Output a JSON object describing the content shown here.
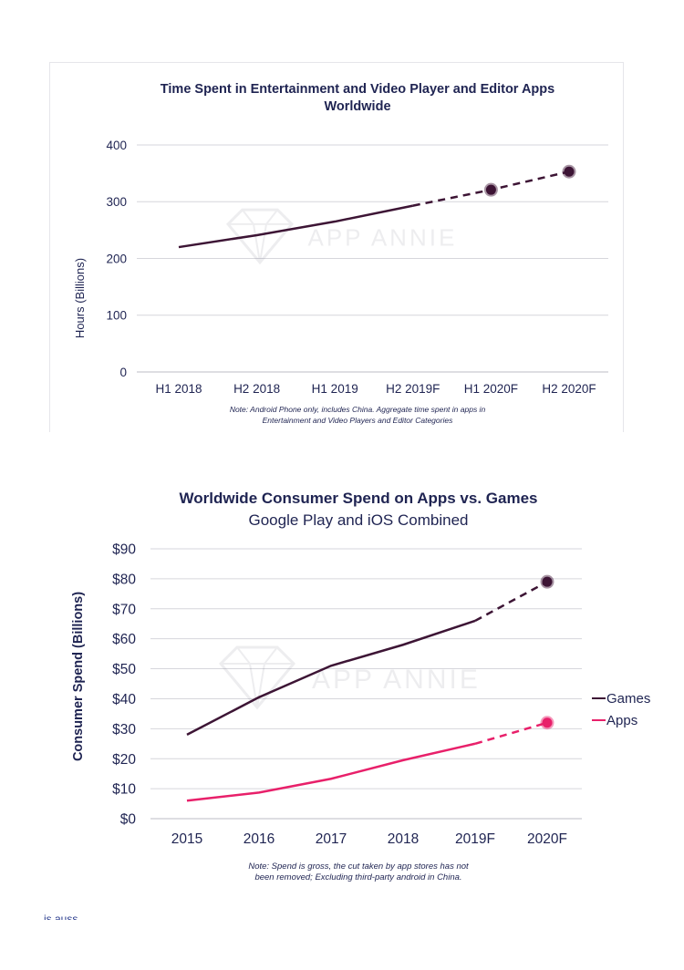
{
  "chart_data": [
    {
      "type": "line",
      "title": "Time Spent in Entertainment and Video Player and Editor Apps",
      "subtitle": "Worldwide",
      "xlabel": "",
      "ylabel": "Hours (Billions)",
      "categories": [
        "H1 2018",
        "H2 2018",
        "H1 2019",
        "H2 2019F",
        "H1 2020F",
        "H2 2020F"
      ],
      "y_ticks": [
        "0",
        "100",
        "200",
        "300",
        "400"
      ],
      "ylim": [
        0,
        400
      ],
      "series": [
        {
          "values": [
            220,
            241,
            265,
            293,
            321,
            353
          ],
          "forecast_from_index": 3,
          "color": "#3d1535"
        }
      ],
      "watermark": "APP ANNIE",
      "note": [
        "Note: Android Phone only, includes China. Aggregate time spent in apps in",
        "Entertainment and Video Players and Editor Categories"
      ],
      "grid": true
    },
    {
      "type": "line",
      "title": "Worldwide Consumer Spend on Apps vs. Games",
      "subtitle": "Google Play and iOS Combined",
      "xlabel": "",
      "ylabel": "Consumer Spend (Billions)",
      "categories": [
        "2015",
        "2016",
        "2017",
        "2018",
        "2019F",
        "2020F"
      ],
      "y_ticks": [
        "$0",
        "$10",
        "$20",
        "$30",
        "$40",
        "$50",
        "$60",
        "$70",
        "$80",
        "$90"
      ],
      "ylim": [
        0,
        90
      ],
      "series": [
        {
          "name": "Games",
          "values": [
            28,
            40.5,
            51,
            58,
            66,
            79
          ],
          "forecast_from_index": 4,
          "color": "#3d1535"
        },
        {
          "name": "Apps",
          "values": [
            6,
            8.7,
            13.3,
            19.5,
            25,
            32
          ],
          "forecast_from_index": 4,
          "color": "#e8206a"
        }
      ],
      "legend": "right",
      "watermark": "APP ANNIE",
      "note": [
        "Note: Spend is gross, the cut taken by app stores has not",
        "been removed; Excluding third-party android in China."
      ],
      "grid": true
    }
  ],
  "footer": {
    "text": "is auss."
  }
}
